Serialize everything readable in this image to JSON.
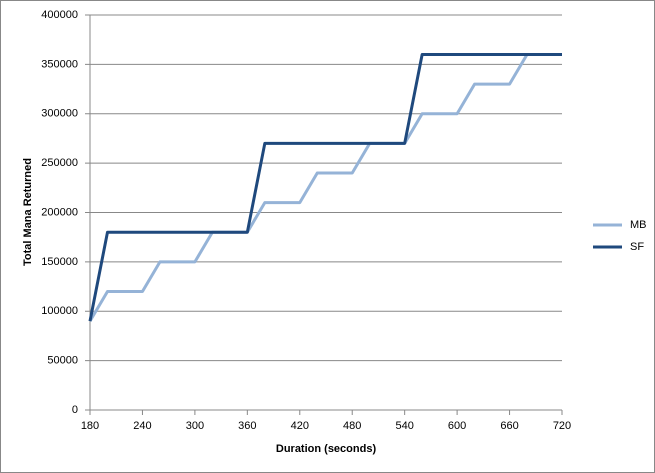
{
  "chart_data": {
    "type": "line",
    "x_label": "Duration (seconds)",
    "y_label": "Total Mana Returned",
    "x": [
      180,
      200,
      220,
      240,
      260,
      280,
      300,
      320,
      340,
      360,
      380,
      400,
      420,
      440,
      460,
      480,
      500,
      520,
      540,
      560,
      580,
      600,
      620,
      640,
      660,
      680,
      700,
      720
    ],
    "series": [
      {
        "name": "MB",
        "color": "#95b3d7",
        "values": [
          90000,
          120000,
          120000,
          120000,
          150000,
          150000,
          150000,
          180000,
          180000,
          180000,
          210000,
          210000,
          210000,
          240000,
          240000,
          240000,
          270000,
          270000,
          270000,
          300000,
          300000,
          300000,
          330000,
          330000,
          330000,
          360000,
          360000,
          360000
        ]
      },
      {
        "name": "SF",
        "color": "#1f497d",
        "values": [
          90000,
          180000,
          180000,
          180000,
          180000,
          180000,
          180000,
          180000,
          180000,
          180000,
          270000,
          270000,
          270000,
          270000,
          270000,
          270000,
          270000,
          270000,
          270000,
          360000,
          360000,
          360000,
          360000,
          360000,
          360000,
          360000,
          360000,
          360000
        ]
      }
    ],
    "xlim": [
      180,
      720
    ],
    "xticks": [
      180,
      240,
      300,
      360,
      420,
      480,
      540,
      600,
      660,
      720
    ],
    "ylim": [
      0,
      400000
    ],
    "yticks": [
      0,
      50000,
      100000,
      150000,
      200000,
      250000,
      300000,
      350000,
      400000
    ],
    "grid": true,
    "legend": "right"
  }
}
